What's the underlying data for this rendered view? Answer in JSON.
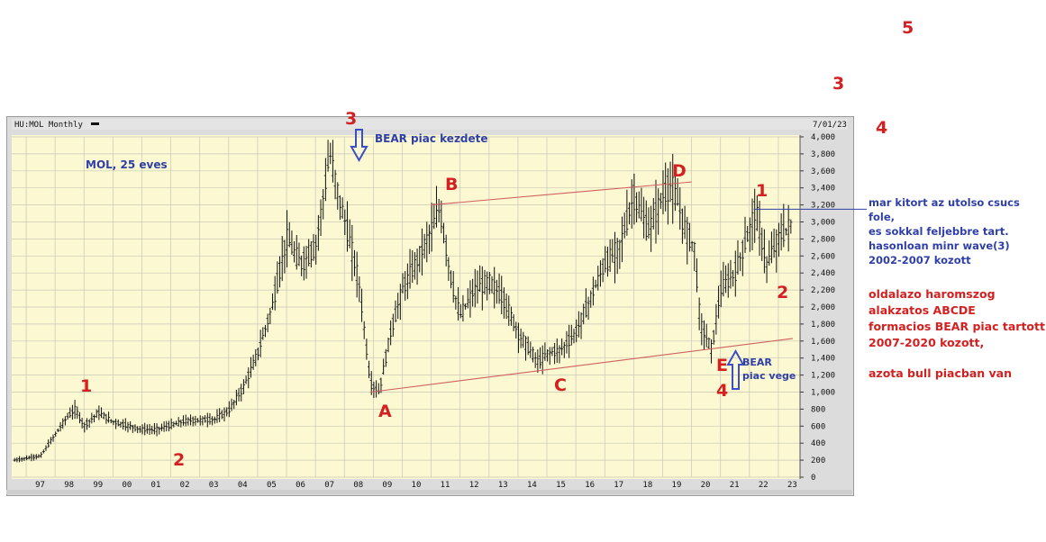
{
  "chart_header": {
    "symbol": "HU:MOL Monthly",
    "date": "7/01/23"
  },
  "chart_data": {
    "type": "bar",
    "subtype": "ohlc-monthly",
    "title": "HU:MOL Monthly",
    "subtitle": "MOL, 25 eves",
    "ylim": [
      0,
      4000
    ],
    "y_ticks": [
      0,
      200,
      400,
      600,
      800,
      "1,000",
      "1,200",
      "1,400",
      "1,600",
      "1,800",
      "2,000",
      "2,200",
      "2,400",
      "2,600",
      "2,800",
      "3,000",
      "3,200",
      "3,400",
      "3,600",
      "3,800",
      "4,000"
    ],
    "x_tick_labels": [
      "97",
      "98",
      "99",
      "00",
      "01",
      "02",
      "03",
      "04",
      "05",
      "06",
      "07",
      "08",
      "09",
      "10",
      "11",
      "12",
      "13",
      "14",
      "15",
      "16",
      "17",
      "18",
      "19",
      "20",
      "21",
      "22",
      "23"
    ],
    "approx_close_path": [
      {
        "x": 1996.6,
        "y": 200
      },
      {
        "x": 1997.5,
        "y": 250
      },
      {
        "x": 1998.0,
        "y": 500
      },
      {
        "x": 1998.4,
        "y": 700
      },
      {
        "x": 1998.7,
        "y": 800
      },
      {
        "x": 1999.0,
        "y": 600
      },
      {
        "x": 1999.5,
        "y": 760
      },
      {
        "x": 2000.0,
        "y": 650
      },
      {
        "x": 2001.0,
        "y": 560
      },
      {
        "x": 2001.5,
        "y": 560
      },
      {
        "x": 2002.5,
        "y": 660
      },
      {
        "x": 2003.5,
        "y": 680
      },
      {
        "x": 2004.0,
        "y": 780
      },
      {
        "x": 2004.5,
        "y": 1050
      },
      {
        "x": 2005.0,
        "y": 1450
      },
      {
        "x": 2005.5,
        "y": 2000
      },
      {
        "x": 2006.0,
        "y": 2800
      },
      {
        "x": 2006.5,
        "y": 2500
      },
      {
        "x": 2007.0,
        "y": 2700
      },
      {
        "x": 2007.5,
        "y": 3800
      },
      {
        "x": 2007.8,
        "y": 3300
      },
      {
        "x": 2008.1,
        "y": 2900
      },
      {
        "x": 2008.5,
        "y": 2300
      },
      {
        "x": 2008.9,
        "y": 1100
      },
      {
        "x": 2009.2,
        "y": 1000
      },
      {
        "x": 2009.6,
        "y": 1700
      },
      {
        "x": 2010.0,
        "y": 2200
      },
      {
        "x": 2010.6,
        "y": 2600
      },
      {
        "x": 2011.3,
        "y": 3150
      },
      {
        "x": 2011.7,
        "y": 2300
      },
      {
        "x": 2012.0,
        "y": 1900
      },
      {
        "x": 2012.5,
        "y": 2200
      },
      {
        "x": 2013.0,
        "y": 2300
      },
      {
        "x": 2013.5,
        "y": 2100
      },
      {
        "x": 2014.0,
        "y": 1700
      },
      {
        "x": 2014.7,
        "y": 1350
      },
      {
        "x": 2015.0,
        "y": 1450
      },
      {
        "x": 2015.5,
        "y": 1500
      },
      {
        "x": 2016.0,
        "y": 1700
      },
      {
        "x": 2016.5,
        "y": 2100
      },
      {
        "x": 2017.0,
        "y": 2500
      },
      {
        "x": 2017.5,
        "y": 2700
      },
      {
        "x": 2018.0,
        "y": 3300
      },
      {
        "x": 2018.5,
        "y": 2900
      },
      {
        "x": 2019.0,
        "y": 3300
      },
      {
        "x": 2019.3,
        "y": 3450
      },
      {
        "x": 2019.8,
        "y": 2900
      },
      {
        "x": 2020.1,
        "y": 2700
      },
      {
        "x": 2020.3,
        "y": 1800
      },
      {
        "x": 2020.7,
        "y": 1500
      },
      {
        "x": 2021.0,
        "y": 2200
      },
      {
        "x": 2021.5,
        "y": 2400
      },
      {
        "x": 2022.0,
        "y": 2900
      },
      {
        "x": 2022.2,
        "y": 3150
      },
      {
        "x": 2022.6,
        "y": 2500
      },
      {
        "x": 2023.0,
        "y": 2800
      },
      {
        "x": 2023.5,
        "y": 3000
      }
    ],
    "channel_upper": [
      {
        "x": 2011.0,
        "y": 3200
      },
      {
        "x": 2020.0,
        "y": 3470
      }
    ],
    "channel_lower": [
      {
        "x": 2008.9,
        "y": 1000
      },
      {
        "x": 2023.5,
        "y": 1630
      }
    ],
    "grid": true,
    "legend": "none"
  },
  "wave_labels": {
    "w1a": "1",
    "w2a": "2",
    "w3a": "3",
    "A": "A",
    "B": "B",
    "C": "C",
    "D": "D",
    "E": "E",
    "w4": "4",
    "w1b": "1",
    "w2b": "2",
    "top3": "3",
    "top4": "4",
    "top5": "5"
  },
  "annotations": {
    "subtitle": "MOL, 25 eves",
    "bear_start": "BEAR piac kezdete",
    "bear_end_1": "BEAR",
    "bear_end_2": "piac vege",
    "breakout": [
      "mar kitort az utolso csucs fole,",
      "es sokkal feljebbre tart.",
      "hasonloan minr wave(3)",
      "2002-2007 kozott"
    ],
    "pattern": [
      "oldalazo haromszog",
      "alakzatos ABCDE",
      "formacios BEAR piac tartott",
      "2007-2020 kozott,"
    ],
    "bull": "azota bull piacban van"
  },
  "colors": {
    "plot_bg": "#fbf8d2",
    "frame_bg": "#dcdcdc",
    "grid": "#c9c7b5",
    "price": "#111111",
    "channel": "#d06060",
    "red_label": "#d32020",
    "blue_text": "#2f3fa8",
    "arrow": "#3a4fc4"
  }
}
